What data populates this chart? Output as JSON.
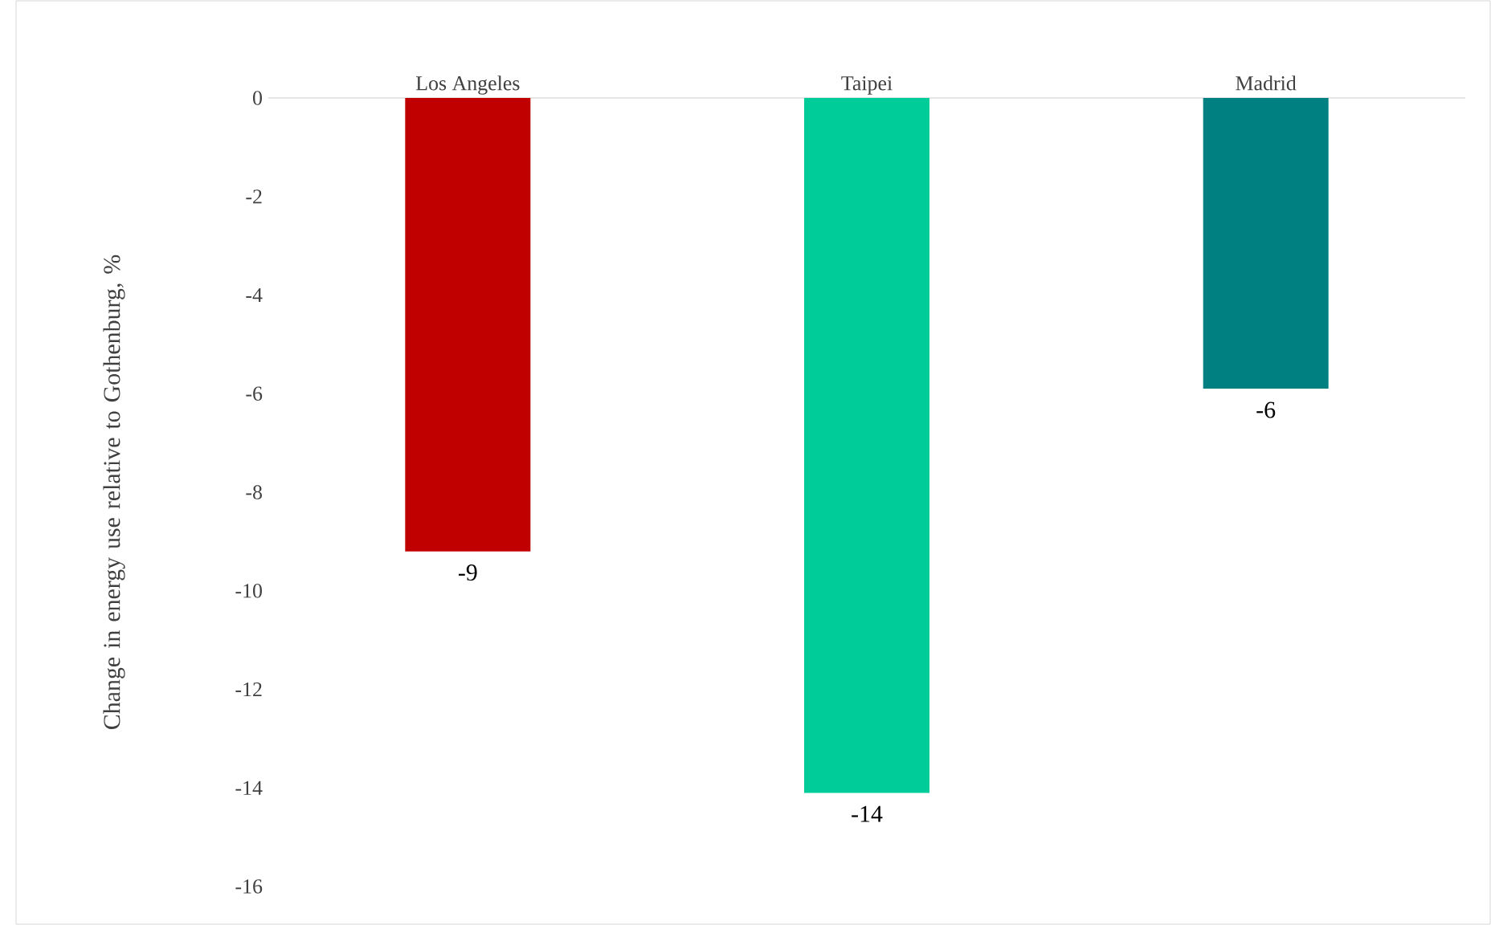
{
  "chart_data": {
    "type": "bar",
    "ylabel": "Change in energy use relative to Gothenburg, %",
    "categories": [
      "Los Angeles",
      "Taipei",
      "Madrid"
    ],
    "values": [
      -9.2,
      -14.1,
      -5.9
    ],
    "colors": [
      "#c00000",
      "#00cc99",
      "#008080"
    ],
    "value_labels": [
      "-9",
      "-14",
      "-6"
    ],
    "ylim": [
      -16,
      0
    ],
    "yticks": [
      0,
      -2,
      -4,
      -6,
      -8,
      -10,
      -12,
      -14,
      -16
    ]
  }
}
